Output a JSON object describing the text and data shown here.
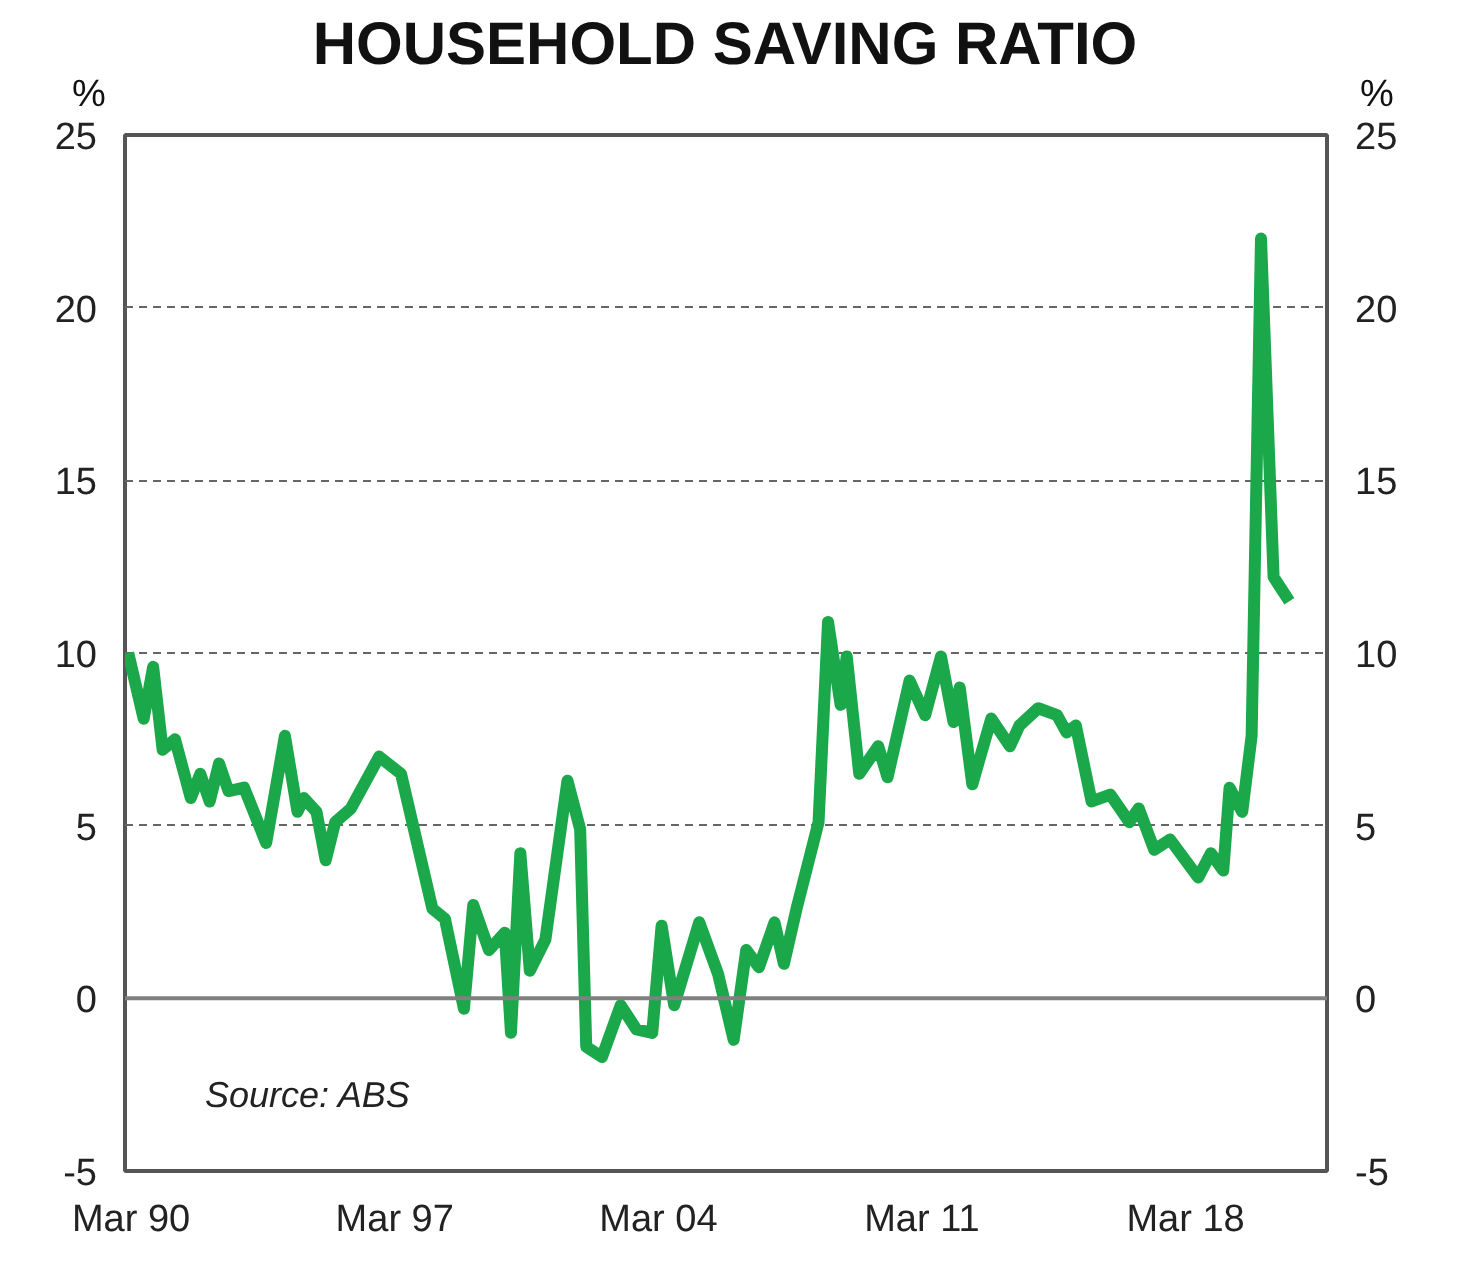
{
  "chart_data": {
    "type": "line",
    "title": "HOUSEHOLD SAVING RATIO",
    "ylabel": "%",
    "y2label": "%",
    "x": [
      "1990-02",
      "1990-07",
      "1990-10",
      "1991-01",
      "1991-05",
      "1991-10",
      "1992-01",
      "1992-04",
      "1992-07",
      "1992-10",
      "1993-03",
      "1993-10",
      "1994-04",
      "1994-08",
      "1994-10",
      "1995-02",
      "1995-05",
      "1995-08",
      "1996-01",
      "1996-10",
      "1997-05",
      "1998-03",
      "1998-07",
      "1999-01",
      "1999-04",
      "1999-09",
      "2000-02",
      "2000-04",
      "2000-07",
      "2000-10",
      "2001-03",
      "2001-10",
      "2002-02",
      "2002-04",
      "2002-09",
      "2003-03",
      "2003-08",
      "2004-01",
      "2004-04",
      "2004-08",
      "2005-04",
      "2005-10",
      "2006-03",
      "2006-07",
      "2006-11",
      "2007-04",
      "2007-07",
      "2007-11",
      "2008-06",
      "2008-09",
      "2009-01",
      "2009-03",
      "2009-07",
      "2010-01",
      "2010-04",
      "2010-11",
      "2011-04",
      "2011-09",
      "2012-01",
      "2012-03",
      "2012-07",
      "2013-01",
      "2013-07",
      "2013-10",
      "2014-04",
      "2014-10",
      "2015-01",
      "2015-04",
      "2015-09",
      "2016-03",
      "2016-09",
      "2016-12",
      "2017-05",
      "2017-10",
      "2018-07",
      "2018-11",
      "2019-03",
      "2019-05",
      "2019-09",
      "2019-12",
      "2020-03",
      "2020-07",
      "2020-12"
    ],
    "series": [
      {
        "color": "#1aa84a",
        "values": [
          10.0,
          8.1,
          9.6,
          7.2,
          7.5,
          5.8,
          6.5,
          5.7,
          6.8,
          6.0,
          6.1,
          4.5,
          7.6,
          5.4,
          5.8,
          5.4,
          4.0,
          5.1,
          5.5,
          7.0,
          6.5,
          2.6,
          2.3,
          -0.3,
          2.7,
          1.4,
          1.9,
          -1.0,
          4.2,
          0.8,
          1.7,
          6.3,
          4.9,
          -1.4,
          -1.7,
          -0.2,
          -0.9,
          -1.0,
          2.1,
          -0.2,
          2.2,
          0.7,
          -1.2,
          1.4,
          0.9,
          2.2,
          1.0,
          2.6,
          5.1,
          10.9,
          8.5,
          9.9,
          6.5,
          7.3,
          6.4,
          9.2,
          8.2,
          9.9,
          8.0,
          9.0,
          6.2,
          8.1,
          7.3,
          7.9,
          8.4,
          8.2,
          7.7,
          7.9,
          5.7,
          5.9,
          5.1,
          5.5,
          4.3,
          4.6,
          3.5,
          4.2,
          3.7,
          6.1,
          5.4,
          7.6,
          22.0,
          12.2,
          11.5
        ]
      }
    ],
    "xlim": [
      "1990-01",
      "2021-12"
    ],
    "xticks": [
      {
        "value": "1990-03",
        "label": "Mar 90"
      },
      {
        "value": "1997-03",
        "label": "Mar 97"
      },
      {
        "value": "2004-03",
        "label": "Mar 04"
      },
      {
        "value": "2011-03",
        "label": "Mar 11"
      },
      {
        "value": "2018-03",
        "label": "Mar 18"
      }
    ],
    "ylim": [
      -5,
      25
    ],
    "yticks": [
      -5,
      0,
      5,
      10,
      15,
      20,
      25
    ],
    "y2lim": [
      -5,
      25
    ],
    "y2ticks": [
      -5,
      0,
      5,
      10,
      15,
      20,
      25
    ],
    "grid": "y",
    "line_style": "solid",
    "marker": "none",
    "ref_lines": [
      {
        "axis": "y",
        "value": 0,
        "color": "#808080",
        "line_style": "solid"
      }
    ],
    "annotations": [
      "Source: ABS"
    ]
  }
}
